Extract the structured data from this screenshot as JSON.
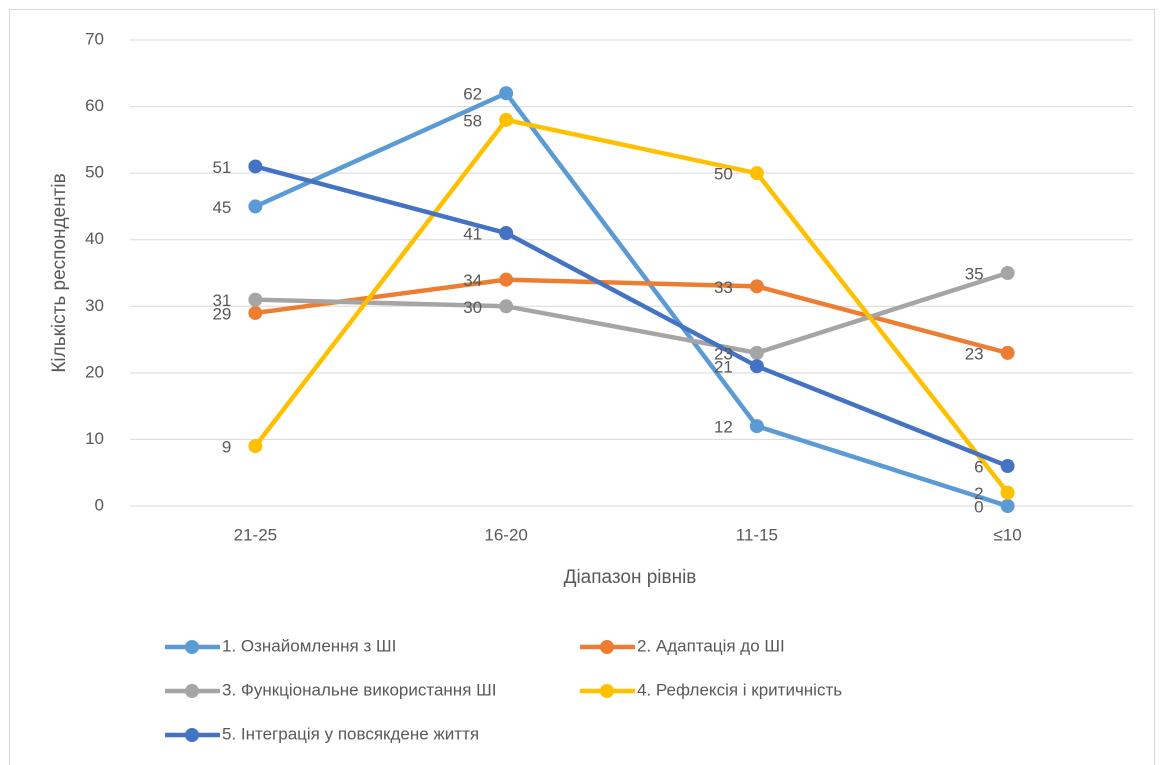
{
  "chart_data": {
    "type": "line",
    "x_label": "Діапазон рівнів",
    "y_label": "Кількість респондентів",
    "categories": [
      "21-25",
      "16-20",
      "11-15",
      "≤10"
    ],
    "series": [
      {
        "name": "1. Ознайомлення з ШІ",
        "color": "#5b9bd5",
        "values": [
          45,
          62,
          12,
          0
        ]
      },
      {
        "name": "2. Адаптація до ШІ",
        "color": "#ed7d31",
        "values": [
          29,
          34,
          33,
          23
        ]
      },
      {
        "name": "3. Функціональне використання ШІ",
        "color": "#a5a5a5",
        "values": [
          31,
          30,
          23,
          35
        ]
      },
      {
        "name": "4. Рефлексія і критичність",
        "color": "#ffc000",
        "values": [
          9,
          58,
          50,
          2
        ]
      },
      {
        "name": "5. Інтеграція у повсякдене життя",
        "color": "#4472c4",
        "values": [
          51,
          41,
          21,
          6
        ]
      }
    ],
    "ylim": [
      0,
      70
    ],
    "yticks": [
      0,
      10,
      20,
      30,
      40,
      50,
      60,
      70
    ],
    "grid": true,
    "legend": "bottom",
    "data_labels": true
  }
}
